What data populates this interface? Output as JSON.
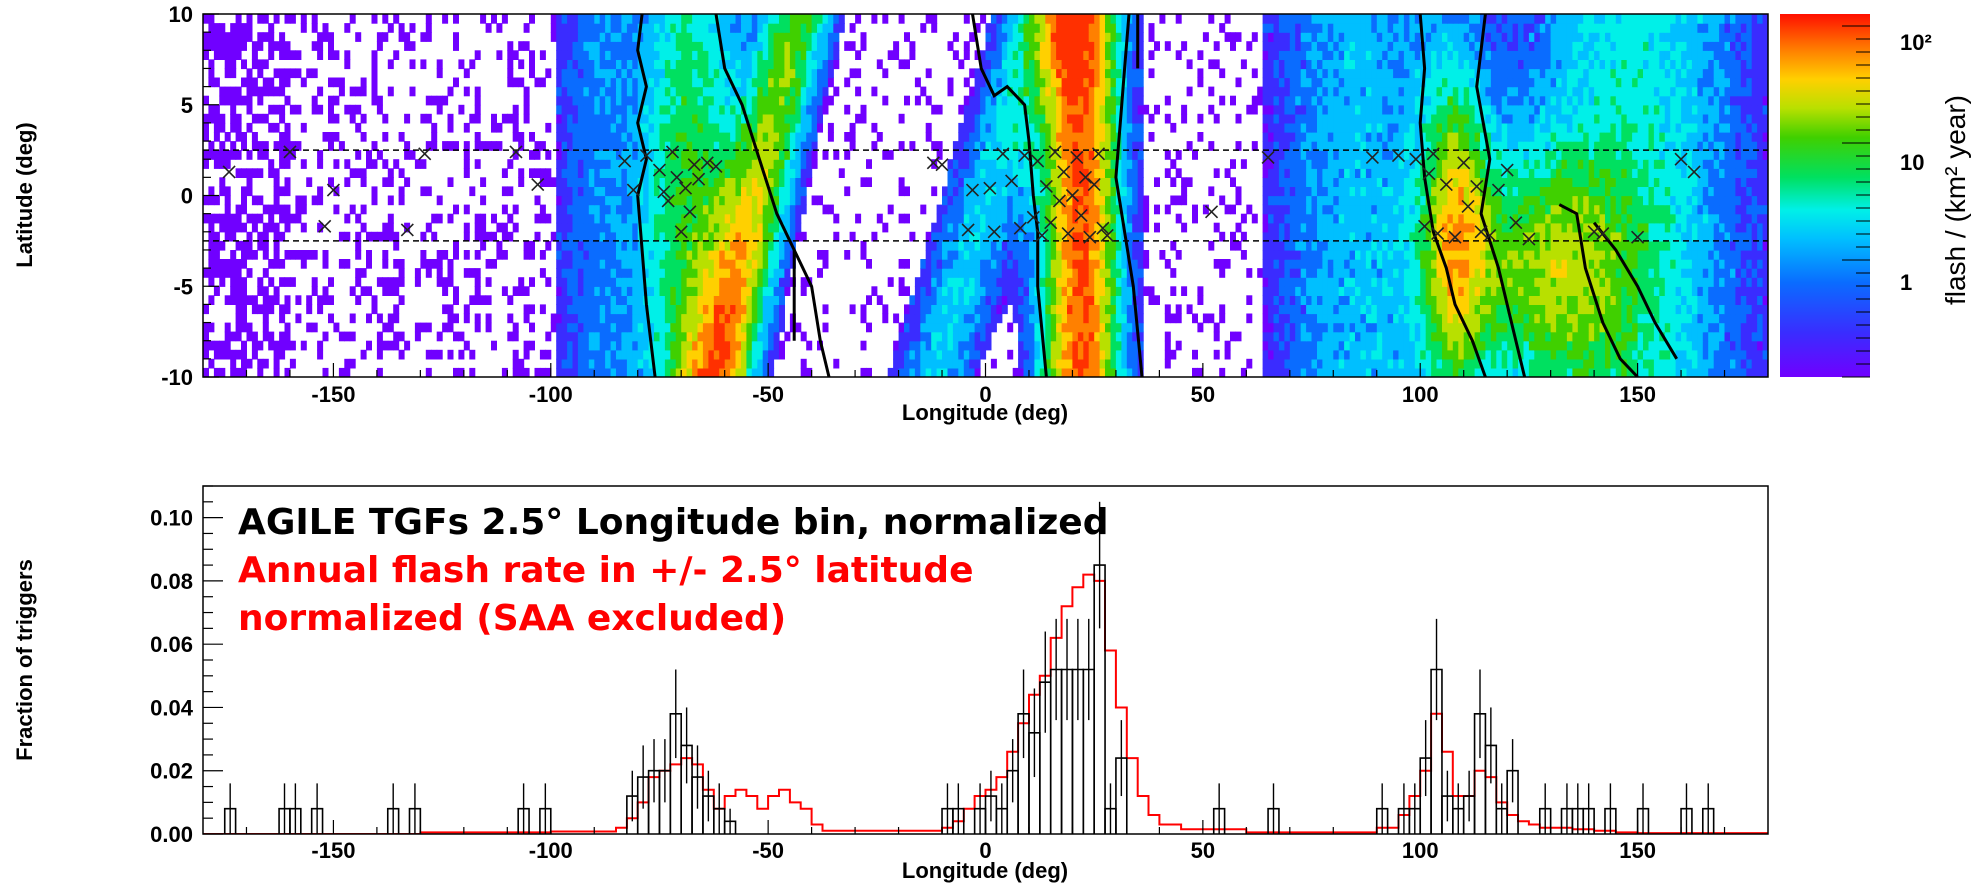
{
  "chart_data": [
    {
      "type": "heatmap",
      "xlabel": "Longitude (deg)",
      "ylabel": "Latitude (deg)",
      "xlim": [
        -180,
        180
      ],
      "ylim": [
        -10,
        10
      ],
      "x_ticks": [
        "-150",
        "-100",
        "-50",
        "0",
        "50",
        "100",
        "150"
      ],
      "y_ticks": [
        "10",
        "5",
        "0",
        "-5",
        "-10"
      ],
      "colorbar": {
        "label": "flash / (km² year)",
        "ticks": [
          "1",
          "10",
          "10²"
        ],
        "scale": "log"
      },
      "reference_lines_lat": [
        2.5,
        -2.5
      ],
      "tgf_markers": [
        {
          "lon": -174,
          "lat": 1.3
        },
        {
          "lon": -160,
          "lat": 2.4
        },
        {
          "lon": -150,
          "lat": 0.3
        },
        {
          "lon": -152,
          "lat": -1.7
        },
        {
          "lon": -133,
          "lat": -1.9
        },
        {
          "lon": -129,
          "lat": 2.3
        },
        {
          "lon": -108,
          "lat": 2.4
        },
        {
          "lon": -103,
          "lat": 0.6
        },
        {
          "lon": -83,
          "lat": 1.9
        },
        {
          "lon": -81,
          "lat": 0.3
        },
        {
          "lon": -78,
          "lat": 2.2
        },
        {
          "lon": -75,
          "lat": 1.4
        },
        {
          "lon": -74,
          "lat": 0.2
        },
        {
          "lon": -73,
          "lat": -0.3
        },
        {
          "lon": -72,
          "lat": 2.4
        },
        {
          "lon": -71,
          "lat": 1.0
        },
        {
          "lon": -70,
          "lat": -2.0
        },
        {
          "lon": -69,
          "lat": 0.4
        },
        {
          "lon": -68,
          "lat": -0.9
        },
        {
          "lon": -67,
          "lat": 1.7
        },
        {
          "lon": -66,
          "lat": 0.9
        },
        {
          "lon": -64,
          "lat": 1.8
        },
        {
          "lon": -62,
          "lat": 1.6
        },
        {
          "lon": -12,
          "lat": 1.8
        },
        {
          "lon": -10,
          "lat": 1.7
        },
        {
          "lon": -4,
          "lat": -1.9
        },
        {
          "lon": -3,
          "lat": 0.3
        },
        {
          "lon": 1,
          "lat": 0.4
        },
        {
          "lon": 2,
          "lat": -2.0
        },
        {
          "lon": 4,
          "lat": 2.3
        },
        {
          "lon": 6,
          "lat": 0.8
        },
        {
          "lon": 8,
          "lat": -1.8
        },
        {
          "lon": 9,
          "lat": 2.2
        },
        {
          "lon": 11,
          "lat": -1.2
        },
        {
          "lon": 12,
          "lat": 1.9
        },
        {
          "lon": 13,
          "lat": -2.2
        },
        {
          "lon": 14,
          "lat": 0.5
        },
        {
          "lon": 15,
          "lat": -1.5
        },
        {
          "lon": 16,
          "lat": 2.4
        },
        {
          "lon": 17,
          "lat": -0.3
        },
        {
          "lon": 18,
          "lat": 1.3
        },
        {
          "lon": 19,
          "lat": -2.1
        },
        {
          "lon": 20,
          "lat": 0.0
        },
        {
          "lon": 21,
          "lat": 2.1
        },
        {
          "lon": 22,
          "lat": -1.1
        },
        {
          "lon": 23,
          "lat": 1.0
        },
        {
          "lon": 24,
          "lat": -2.3
        },
        {
          "lon": 25,
          "lat": 0.6
        },
        {
          "lon": 26,
          "lat": 2.3
        },
        {
          "lon": 27,
          "lat": -1.8
        },
        {
          "lon": 28,
          "lat": -2.2
        },
        {
          "lon": 52,
          "lat": -0.9
        },
        {
          "lon": 65,
          "lat": 2.1
        },
        {
          "lon": 89,
          "lat": 2.1
        },
        {
          "lon": 95,
          "lat": 2.2
        },
        {
          "lon": 99,
          "lat": 2.0
        },
        {
          "lon": 101,
          "lat": -1.7
        },
        {
          "lon": 102,
          "lat": 1.2
        },
        {
          "lon": 103,
          "lat": 2.3
        },
        {
          "lon": 104,
          "lat": -2.1
        },
        {
          "lon": 106,
          "lat": 0.6
        },
        {
          "lon": 108,
          "lat": -2.3
        },
        {
          "lon": 110,
          "lat": 1.8
        },
        {
          "lon": 111,
          "lat": -0.6
        },
        {
          "lon": 113,
          "lat": 0.5
        },
        {
          "lon": 114,
          "lat": -2.0
        },
        {
          "lon": 116,
          "lat": -2.2
        },
        {
          "lon": 118,
          "lat": 0.3
        },
        {
          "lon": 120,
          "lat": 1.4
        },
        {
          "lon": 122,
          "lat": -1.5
        },
        {
          "lon": 125,
          "lat": -2.4
        },
        {
          "lon": 140,
          "lat": -2.0
        },
        {
          "lon": 142,
          "lat": -2.1
        },
        {
          "lon": 150,
          "lat": -2.3
        },
        {
          "lon": 160,
          "lat": 2.0
        },
        {
          "lon": 163,
          "lat": 1.3
        }
      ]
    },
    {
      "type": "line",
      "xlabel": "Longitude (deg)",
      "ylabel": "Fraction of triggers",
      "xlim": [
        -180,
        180
      ],
      "ylim": [
        0,
        0.11
      ],
      "x_ticks": [
        "-150",
        "-100",
        "-50",
        "0",
        "50",
        "100",
        "150"
      ],
      "y_ticks": [
        "0.00",
        "0.02",
        "0.04",
        "0.06",
        "0.08",
        "0.10"
      ],
      "legend": [
        {
          "text": "AGILE TGFs 2.5° Longitude bin, normalized",
          "color": "#000000"
        },
        {
          "text": "Annual flash rate in +/- 2.5° latitude",
          "color": "#ff0000"
        },
        {
          "text": "normalized (SAA excluded)",
          "color": "#ff0000"
        }
      ],
      "series": [
        {
          "style": "histogram with error bars",
          "color": "#000000",
          "bin_width": 2.5,
          "bins": [
            {
              "x": -175,
              "y": 0.008,
              "err": 0.008
            },
            {
              "x": -162.5,
              "y": 0.008,
              "err": 0.008
            },
            {
              "x": -160,
              "y": 0.008,
              "err": 0.008
            },
            {
              "x": -155,
              "y": 0.008,
              "err": 0.008
            },
            {
              "x": -137.5,
              "y": 0.008,
              "err": 0.008
            },
            {
              "x": -132.5,
              "y": 0.008,
              "err": 0.008
            },
            {
              "x": -107.5,
              "y": 0.008,
              "err": 0.008
            },
            {
              "x": -102.5,
              "y": 0.008,
              "err": 0.008
            },
            {
              "x": -82.5,
              "y": 0.012,
              "err": 0.008
            },
            {
              "x": -80,
              "y": 0.018,
              "err": 0.01
            },
            {
              "x": -77.5,
              "y": 0.02,
              "err": 0.01
            },
            {
              "x": -75,
              "y": 0.02,
              "err": 0.01
            },
            {
              "x": -72.5,
              "y": 0.038,
              "err": 0.014
            },
            {
              "x": -70,
              "y": 0.028,
              "err": 0.012
            },
            {
              "x": -67.5,
              "y": 0.018,
              "err": 0.01
            },
            {
              "x": -65,
              "y": 0.012,
              "err": 0.008
            },
            {
              "x": -62.5,
              "y": 0.008,
              "err": 0.008
            },
            {
              "x": -60,
              "y": 0.004,
              "err": 0.004
            },
            {
              "x": -10,
              "y": 0.008,
              "err": 0.008
            },
            {
              "x": -7.5,
              "y": 0.008,
              "err": 0.008
            },
            {
              "x": -2.5,
              "y": 0.008,
              "err": 0.008
            },
            {
              "x": 0,
              "y": 0.012,
              "err": 0.008
            },
            {
              "x": 2.5,
              "y": 0.008,
              "err": 0.008
            },
            {
              "x": 5,
              "y": 0.02,
              "err": 0.01
            },
            {
              "x": 7.5,
              "y": 0.038,
              "err": 0.014
            },
            {
              "x": 10,
              "y": 0.032,
              "err": 0.014
            },
            {
              "x": 12.5,
              "y": 0.048,
              "err": 0.016
            },
            {
              "x": 15,
              "y": 0.052,
              "err": 0.016
            },
            {
              "x": 17.5,
              "y": 0.052,
              "err": 0.016
            },
            {
              "x": 20,
              "y": 0.052,
              "err": 0.016
            },
            {
              "x": 22.5,
              "y": 0.052,
              "err": 0.016
            },
            {
              "x": 25,
              "y": 0.085,
              "err": 0.02
            },
            {
              "x": 27.5,
              "y": 0.008,
              "err": 0.008
            },
            {
              "x": 30,
              "y": 0.024,
              "err": 0.012
            },
            {
              "x": 52.5,
              "y": 0.008,
              "err": 0.008
            },
            {
              "x": 65,
              "y": 0.008,
              "err": 0.008
            },
            {
              "x": 90,
              "y": 0.008,
              "err": 0.008
            },
            {
              "x": 95,
              "y": 0.008,
              "err": 0.008
            },
            {
              "x": 97.5,
              "y": 0.008,
              "err": 0.008
            },
            {
              "x": 100,
              "y": 0.024,
              "err": 0.012
            },
            {
              "x": 102.5,
              "y": 0.052,
              "err": 0.016
            },
            {
              "x": 105,
              "y": 0.012,
              "err": 0.008
            },
            {
              "x": 107.5,
              "y": 0.008,
              "err": 0.008
            },
            {
              "x": 110,
              "y": 0.012,
              "err": 0.008
            },
            {
              "x": 112.5,
              "y": 0.038,
              "err": 0.014
            },
            {
              "x": 115,
              "y": 0.028,
              "err": 0.012
            },
            {
              "x": 117.5,
              "y": 0.008,
              "err": 0.008
            },
            {
              "x": 120,
              "y": 0.02,
              "err": 0.01
            },
            {
              "x": 127.5,
              "y": 0.008,
              "err": 0.008
            },
            {
              "x": 132.5,
              "y": 0.008,
              "err": 0.008
            },
            {
              "x": 135,
              "y": 0.008,
              "err": 0.008
            },
            {
              "x": 137.5,
              "y": 0.008,
              "err": 0.008
            },
            {
              "x": 142.5,
              "y": 0.008,
              "err": 0.008
            },
            {
              "x": 150,
              "y": 0.008,
              "err": 0.008
            },
            {
              "x": 160,
              "y": 0.008,
              "err": 0.008
            },
            {
              "x": 165,
              "y": 0.008,
              "err": 0.008
            }
          ]
        },
        {
          "style": "step line",
          "color": "#ff0000",
          "x": [
            -180,
            -130,
            -100,
            -85,
            -82.5,
            -80,
            -77.5,
            -75,
            -72.5,
            -70,
            -67.5,
            -65,
            -62.5,
            -60,
            -57.5,
            -55,
            -52.5,
            -50,
            -47.5,
            -45,
            -42.5,
            -40,
            -37.5,
            -20,
            -10,
            -7.5,
            -5,
            -2.5,
            0,
            2.5,
            5,
            7.5,
            10,
            12.5,
            15,
            17.5,
            20,
            22.5,
            25,
            27.5,
            30,
            32.5,
            35,
            37.5,
            40,
            45,
            60,
            80,
            90,
            95,
            97.5,
            100,
            102.5,
            105,
            107.5,
            110,
            112.5,
            115,
            117.5,
            120,
            122.5,
            125,
            127.5,
            130,
            135,
            140,
            145,
            150,
            180
          ],
          "y": [
            0.0,
            0.0005,
            0.0008,
            0.002,
            0.005,
            0.01,
            0.018,
            0.02,
            0.022,
            0.024,
            0.022,
            0.014,
            0.008,
            0.012,
            0.014,
            0.012,
            0.008,
            0.012,
            0.014,
            0.01,
            0.008,
            0.003,
            0.001,
            0.001,
            0.002,
            0.004,
            0.008,
            0.012,
            0.014,
            0.018,
            0.026,
            0.035,
            0.044,
            0.05,
            0.062,
            0.072,
            0.078,
            0.082,
            0.08,
            0.058,
            0.04,
            0.024,
            0.012,
            0.006,
            0.003,
            0.0015,
            0.0005,
            0.0005,
            0.002,
            0.006,
            0.012,
            0.02,
            0.038,
            0.026,
            0.012,
            0.012,
            0.02,
            0.018,
            0.01,
            0.006,
            0.004,
            0.003,
            0.002,
            0.002,
            0.0015,
            0.001,
            0.0005,
            0.0003,
            0.0
          ]
        }
      ]
    }
  ]
}
